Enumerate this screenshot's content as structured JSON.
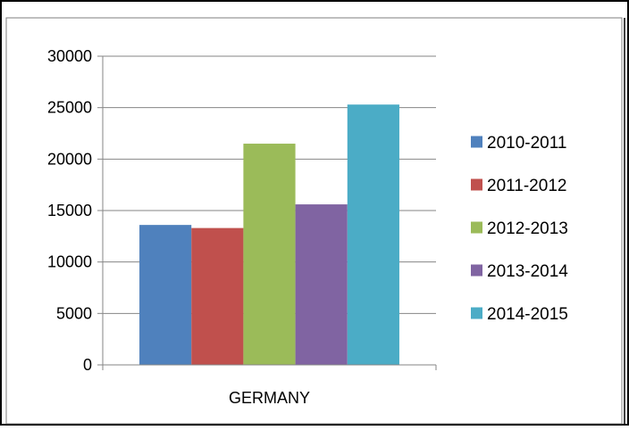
{
  "chart_data": {
    "type": "bar",
    "categories": [
      "GERMANY"
    ],
    "series": [
      {
        "name": "2010-2011",
        "values": [
          13600
        ],
        "color": "#4F81BD"
      },
      {
        "name": "2011-2012",
        "values": [
          13300
        ],
        "color": "#C0504D"
      },
      {
        "name": "2012-2013",
        "values": [
          21500
        ],
        "color": "#9BBB59"
      },
      {
        "name": "2013-2014",
        "values": [
          15600
        ],
        "color": "#8064A2"
      },
      {
        "name": "2014-2015",
        "values": [
          25300
        ],
        "color": "#4BACC6"
      }
    ],
    "title": "",
    "xlabel": "",
    "ylabel": "",
    "ylim": [
      0,
      30000
    ],
    "yticks": [
      0,
      5000,
      10000,
      15000,
      20000,
      25000,
      30000
    ],
    "grid": true,
    "legend": "right"
  }
}
